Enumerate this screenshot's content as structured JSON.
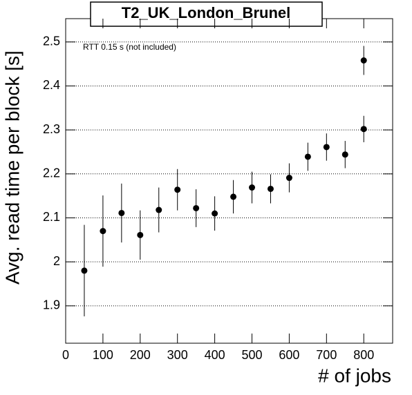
{
  "chart_data": {
    "type": "scatter",
    "title": "T2_UK_London_Brunel",
    "annotation": "RTT 0.15 s (not included)",
    "x_label": "# of jobs",
    "y_label": "Avg. read time per block [s]",
    "x": [
      50,
      100,
      150,
      200,
      250,
      300,
      350,
      400,
      450,
      500,
      550,
      600,
      650,
      700,
      750,
      800,
      800
    ],
    "values": [
      1.98,
      2.07,
      2.111,
      2.061,
      2.118,
      2.164,
      2.122,
      2.11,
      2.148,
      2.169,
      2.166,
      2.191,
      2.239,
      2.261,
      2.244,
      2.302,
      2.458
    ],
    "errors": [
      0.104,
      0.081,
      0.067,
      0.056,
      0.051,
      0.047,
      0.043,
      0.039,
      0.038,
      0.036,
      0.033,
      0.033,
      0.032,
      0.031,
      0.031,
      0.03,
      0.033
    ],
    "color": "#000000",
    "xlim": [
      0,
      877.5
    ],
    "ylim": [
      1.815,
      2.553
    ],
    "xticks": [
      0,
      100,
      200,
      300,
      400,
      500,
      600,
      700,
      800
    ],
    "yticks": [
      1.9,
      2,
      2.1,
      2.2,
      2.3,
      2.4,
      2.5
    ],
    "grid": true
  }
}
